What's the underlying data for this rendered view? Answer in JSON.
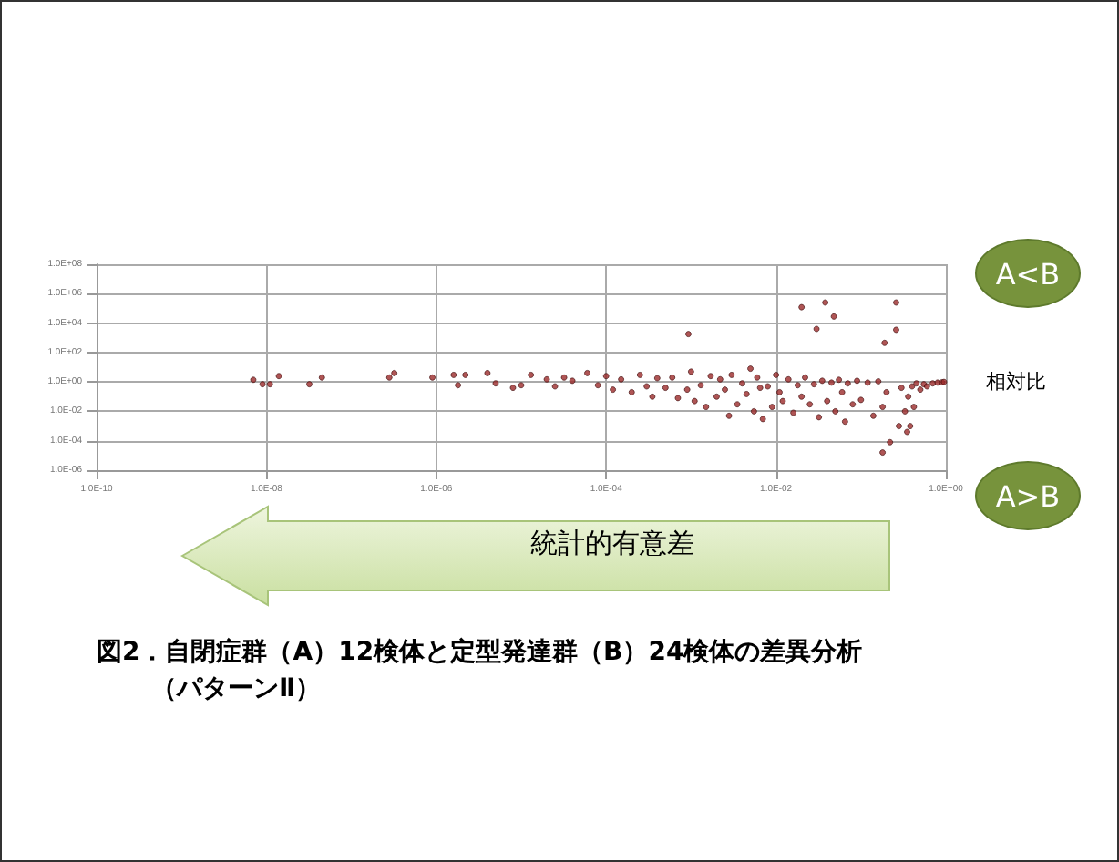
{
  "chart_data": {
    "type": "scatter",
    "title": "図2．自閉症群（A）12検体と定型発達群（B）24検体の差異分析",
    "subtitle": "（パターンⅡ）",
    "annotations": [
      "A<B",
      "相対比",
      "A>B",
      "統計的有意差"
    ],
    "log": "xy",
    "grid": true,
    "marker": "circle",
    "xlim": [
      1e-10,
      1
    ],
    "ylim": [
      1e-06,
      100000000.0
    ],
    "xticks": [
      {
        "value": 1e-10,
        "label": "1.0E-10"
      },
      {
        "value": 1e-08,
        "label": "1.0E-08"
      },
      {
        "value": 1e-06,
        "label": "1.0E-06"
      },
      {
        "value": 0.0001,
        "label": "1.0E-04"
      },
      {
        "value": 0.01,
        "label": "1.0E-02"
      },
      {
        "value": 1,
        "label": "1.0E+00"
      }
    ],
    "yticks": [
      {
        "value": 1e-06,
        "label": "1.0E-06"
      },
      {
        "value": 0.0001,
        "label": "1.0E-04"
      },
      {
        "value": 0.01,
        "label": "1.0E-02"
      },
      {
        "value": 1,
        "label": "1.0E+00"
      },
      {
        "value": 100,
        "label": "1.0E+02"
      },
      {
        "value": 10000,
        "label": "1.0E+04"
      },
      {
        "value": 1000000,
        "label": "1.0E+06"
      },
      {
        "value": 100000000,
        "label": "1.0E+08"
      }
    ],
    "series": [
      {
        "color": "#9b2a2a",
        "x": [
          7e-09,
          9e-09,
          1.1e-08,
          1.4e-08,
          3.2e-08,
          4.5e-08,
          2.8e-07,
          3.2e-07,
          9e-07,
          1.6e-06,
          1.8e-06,
          2.2e-06,
          4e-06,
          5e-06,
          8e-06,
          1e-05,
          1.3e-05,
          2e-05,
          2.5e-05,
          3.2e-05,
          4e-05,
          6e-05,
          8e-05,
          0.0001,
          0.00012,
          0.00015,
          0.0002,
          0.00025,
          0.0003,
          0.00035,
          0.0004,
          0.0005,
          0.0006,
          0.0007,
          0.00093,
          0.0009,
          0.001,
          0.0011,
          0.0013,
          0.0015,
          0.0017,
          0.002,
          0.0022,
          0.0025,
          0.0028,
          0.003,
          0.0035,
          0.004,
          0.0045,
          0.005,
          0.0055,
          0.006,
          0.0065,
          0.007,
          0.008,
          0.009,
          0.01,
          0.011,
          0.012,
          0.014,
          0.016,
          0.018,
          0.02,
          0.02,
          0.022,
          0.025,
          0.028,
          0.03,
          0.032,
          0.035,
          0.038,
          0.04,
          0.045,
          0.048,
          0.05,
          0.055,
          0.06,
          0.065,
          0.07,
          0.08,
          0.09,
          0.1,
          0.12,
          0.14,
          0.16,
          0.18,
          0.18,
          0.19,
          0.2,
          0.22,
          0.26,
          0.26,
          0.28,
          0.3,
          0.33,
          0.35,
          0.36,
          0.38,
          0.4,
          0.42,
          0.45,
          0.5,
          0.55,
          0.6,
          0.7,
          0.8,
          0.9,
          0.95
        ],
        "values": [
          1.4,
          0.7,
          0.7,
          2.5,
          0.7,
          2,
          2,
          4,
          2,
          3,
          0.6,
          3,
          4,
          0.8,
          0.4,
          0.6,
          3,
          1.5,
          0.5,
          2,
          1.2,
          4,
          0.6,
          2.5,
          0.3,
          1.5,
          0.2,
          3,
          0.5,
          0.1,
          1.8,
          0.4,
          2,
          0.08,
          1800,
          0.3,
          5,
          0.05,
          0.6,
          0.02,
          2.5,
          0.1,
          1.5,
          0.3,
          0.005,
          3,
          0.03,
          0.8,
          0.15,
          8,
          0.01,
          2,
          0.4,
          0.003,
          0.5,
          0.02,
          3,
          0.2,
          0.05,
          1.5,
          0.008,
          0.6,
          120000,
          0.1,
          2,
          0.03,
          0.7,
          4000,
          0.004,
          1.2,
          250000,
          0.05,
          0.9,
          28000,
          0.01,
          1.4,
          0.2,
          0.002,
          0.8,
          0.03,
          1.2,
          0.06,
          0.9,
          0.005,
          1.1,
          0.02,
          1.6e-05,
          450,
          0.2,
          8e-05,
          250000,
          3500,
          0.001,
          0.4,
          0.01,
          0.0004,
          0.1,
          0.001,
          0.5,
          0.02,
          0.8,
          0.3,
          0.7,
          0.5,
          0.8,
          0.9,
          0.95,
          1
        ]
      }
    ]
  }
}
